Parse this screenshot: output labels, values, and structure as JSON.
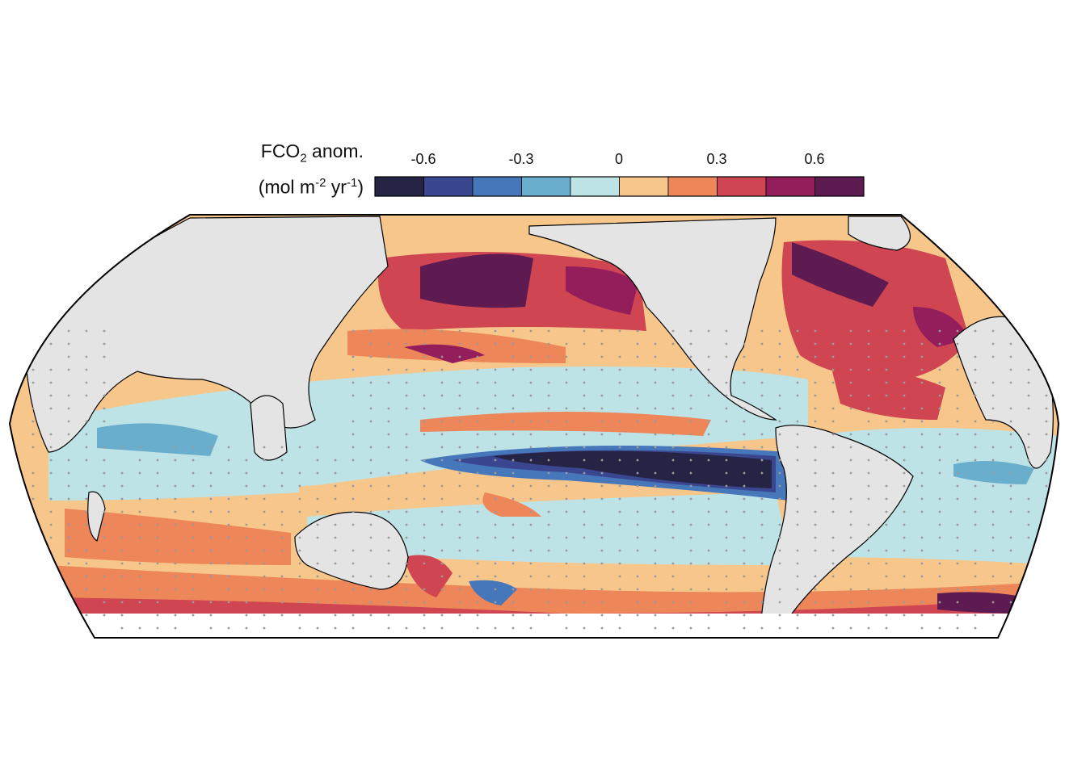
{
  "legend": {
    "title_prefix": "FCO",
    "title_sub": "2",
    "title_suffix": " anom.",
    "unit_open": "(mol m",
    "unit_sup1": "-2",
    "unit_mid": " yr",
    "unit_sup2": "-1",
    "unit_close": ")",
    "tick_labels": [
      "-0.6",
      "-0.3",
      "0",
      "0.3",
      "0.6"
    ],
    "bins": [
      -0.75,
      -0.6,
      -0.45,
      -0.3,
      -0.15,
      0,
      0.15,
      0.3,
      0.45,
      0.6,
      0.75
    ],
    "colors": [
      "#262444",
      "#3b4690",
      "#4677ba",
      "#6aaecd",
      "#bde3e6",
      "#f7c68a",
      "#ed8658",
      "#cf4551",
      "#941d5c",
      "#5e1b52"
    ]
  },
  "colors": {
    "land": "#e4e4e4",
    "coastline": "#000000",
    "stipple": "#9a9a9a",
    "frame": "#000000"
  }
}
